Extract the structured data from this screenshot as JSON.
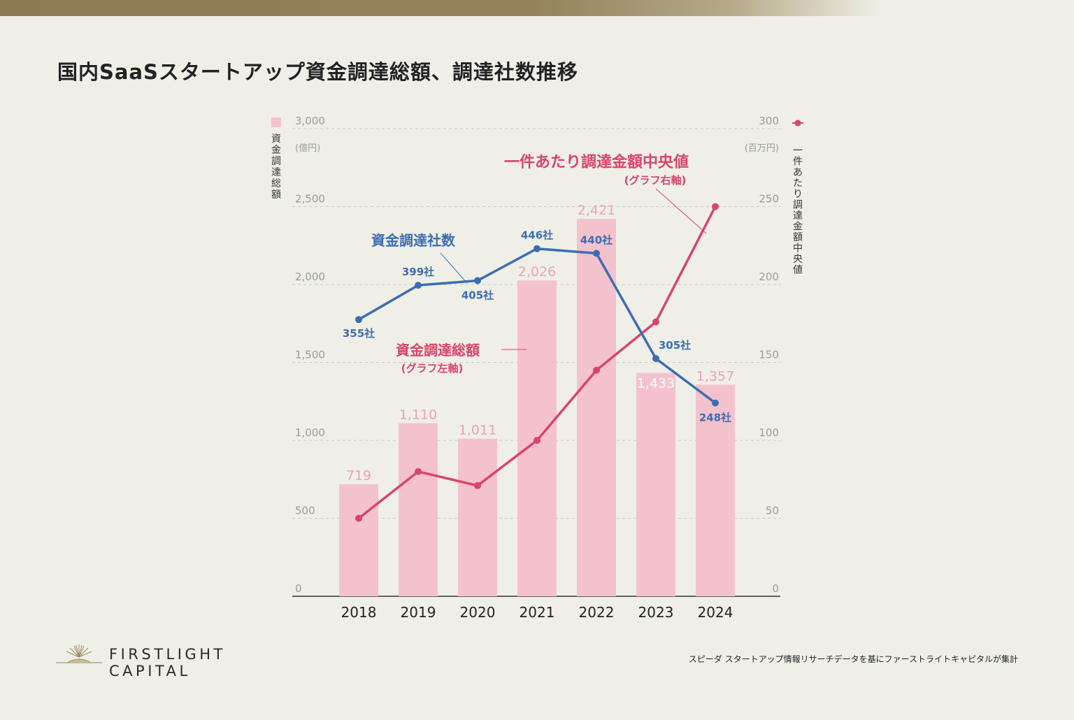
{
  "title": "国内SaaSスタートアップ資金調達総額、調達社数推移",
  "colors": {
    "bar": "#f4c2cd",
    "bar_label": "#eba3b1",
    "red_line": "#d8456a",
    "blue_line": "#3d6db0",
    "axis_text": "#9a9a9a",
    "grid": "#c8c8c8"
  },
  "chart_data": {
    "type": "bar",
    "categories": [
      "2018",
      "2019",
      "2020",
      "2021",
      "2022",
      "2023",
      "2024"
    ],
    "left_axis": {
      "label": "資金調達総額",
      "unit": "(億円)",
      "ticks": [
        "0",
        "500",
        "1,000",
        "1,500",
        "2,000",
        "2,500",
        "3,000"
      ],
      "ylim": [
        0,
        3000
      ]
    },
    "right_axis": {
      "label": "一件あたり調達金額中央値",
      "unit": "(百万円)",
      "ticks": [
        "0",
        "50",
        "100",
        "150",
        "200",
        "250",
        "300"
      ],
      "ylim": [
        0,
        300
      ]
    },
    "series": [
      {
        "name": "資金調達総額",
        "type": "bar",
        "axis": "left",
        "values": [
          719,
          1110,
          1011,
          2026,
          2421,
          1433,
          1357
        ],
        "labels": [
          "719",
          "1,110",
          "1,011",
          "2,026",
          "2,421",
          "1,433",
          "1,357"
        ]
      },
      {
        "name": "一件あたり調達金額中央値",
        "type": "line",
        "axis": "right",
        "values": [
          50,
          80,
          71,
          100,
          145,
          176,
          250
        ]
      },
      {
        "name": "資金調達社数",
        "type": "line",
        "axis": "left-scale",
        "values": [
          355,
          399,
          405,
          446,
          440,
          305,
          248
        ],
        "labels": [
          "355社",
          "399社",
          "405社",
          "446社",
          "440社",
          "305社",
          "248社"
        ]
      }
    ],
    "annotations": {
      "blue_title": "資金調達社数",
      "red_bar_title": "資金調達総額",
      "red_bar_sub": "(グラフ左軸)",
      "red_line_title": "一件あたり調達金額中央値",
      "red_line_sub": "(グラフ右軸)"
    }
  },
  "footer": {
    "logo": "FIRSTLIGHT CAPITAL",
    "source": "スピーダ スタートアップ情報リサーチデータを基にファーストライトキャピタルが集計"
  }
}
